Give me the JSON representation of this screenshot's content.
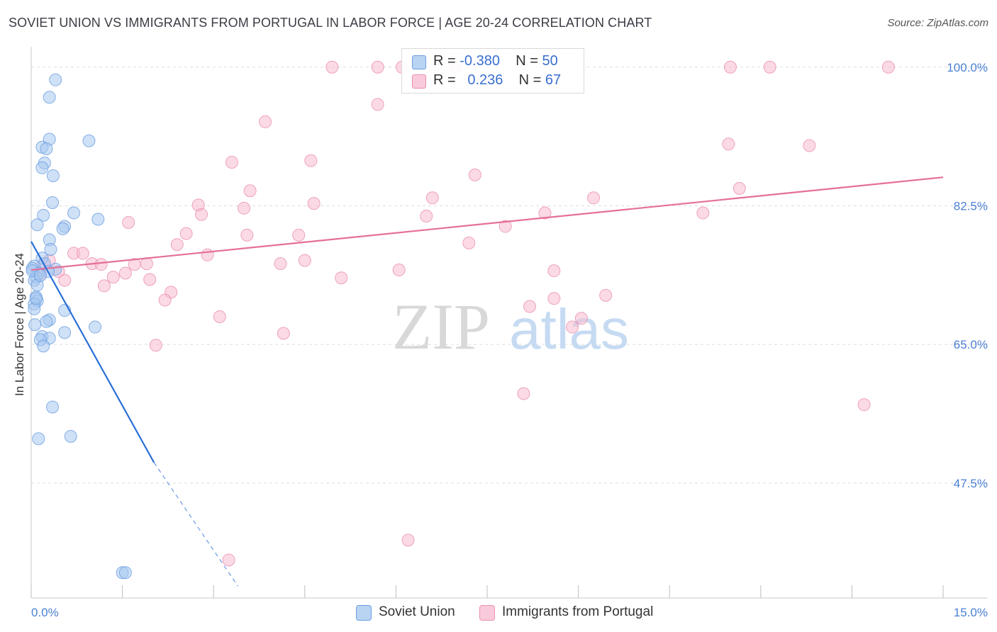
{
  "header": {
    "title": "SOVIET UNION VS IMMIGRANTS FROM PORTUGAL IN LABOR FORCE | AGE 20-24 CORRELATION CHART",
    "source": "Source: ZipAtlas.com"
  },
  "watermark": {
    "zip": "ZIP",
    "atlas": "atlas"
  },
  "legend_top": {
    "rows": [
      {
        "r_label": "R =",
        "r_value": "-0.380",
        "n_label": "N =",
        "n_value": "50"
      },
      {
        "r_label": "R =",
        "r_value": "0.236",
        "n_label": "N =",
        "n_value": "67"
      }
    ]
  },
  "legend_bottom": {
    "items": [
      {
        "label": "Soviet Union"
      },
      {
        "label": "Immigrants from Portugal"
      }
    ]
  },
  "colors": {
    "blue_fill": "#a8c8f0",
    "blue_stroke": "#6a9ee0",
    "blue_line": "#2a6fd6",
    "pink_fill": "#f7bcd0",
    "pink_stroke": "#ea8fb0",
    "pink_line": "#e56f98",
    "tick_text": "#4a7fd4",
    "grid": "#dedede"
  },
  "chart_data": {
    "type": "scatter",
    "title": "SOVIET UNION VS IMMIGRANTS FROM PORTUGAL IN LABOR FORCE | AGE 20-24 CORRELATION CHART",
    "xlabel": "",
    "ylabel": "In Labor Force | Age 20-24",
    "xlim": [
      0,
      15
    ],
    "ylim": [
      33,
      101.5
    ],
    "x_tick_labels": [
      "0.0%",
      "15.0%"
    ],
    "y_ticks": [
      47.5,
      65.0,
      82.5,
      100.0
    ],
    "y_tick_labels": [
      "47.5%",
      "65.0%",
      "82.5%",
      "100.0%"
    ],
    "grid": true,
    "legend_position": "top-center",
    "series": [
      {
        "name": "Soviet Union",
        "r": -0.38,
        "n": 50,
        "points": [
          [
            0.4,
            98.4
          ],
          [
            0.3,
            96.2
          ],
          [
            0.95,
            90.7
          ],
          [
            0.3,
            90.9
          ],
          [
            0.18,
            89.9
          ],
          [
            0.25,
            89.7
          ],
          [
            0.22,
            87.9
          ],
          [
            0.18,
            87.3
          ],
          [
            0.36,
            86.3
          ],
          [
            0.35,
            82.9
          ],
          [
            0.7,
            81.6
          ],
          [
            0.2,
            81.3
          ],
          [
            1.1,
            80.8
          ],
          [
            0.1,
            80.1
          ],
          [
            0.55,
            79.9
          ],
          [
            0.52,
            79.6
          ],
          [
            0.3,
            78.2
          ],
          [
            0.32,
            77.0
          ],
          [
            0.18,
            75.9
          ],
          [
            0.22,
            75.2
          ],
          [
            0.05,
            74.9
          ],
          [
            0.02,
            74.6
          ],
          [
            0.4,
            74.5
          ],
          [
            0.28,
            74.2
          ],
          [
            0.12,
            74.0
          ],
          [
            0.08,
            73.5
          ],
          [
            0.05,
            73.1
          ],
          [
            0.1,
            72.5
          ],
          [
            0.08,
            71.0
          ],
          [
            0.1,
            70.5
          ],
          [
            0.05,
            70.1
          ],
          [
            0.05,
            69.5
          ],
          [
            0.55,
            69.3
          ],
          [
            0.3,
            68.1
          ],
          [
            0.25,
            67.9
          ],
          [
            0.06,
            67.5
          ],
          [
            1.05,
            67.2
          ],
          [
            0.55,
            66.5
          ],
          [
            0.18,
            66.0
          ],
          [
            0.3,
            65.8
          ],
          [
            0.15,
            65.6
          ],
          [
            0.2,
            64.8
          ],
          [
            0.35,
            57.1
          ],
          [
            0.65,
            53.4
          ],
          [
            0.12,
            53.1
          ],
          [
            1.5,
            36.2
          ],
          [
            1.55,
            36.2
          ],
          [
            0.02,
            74.3
          ],
          [
            0.15,
            73.7
          ],
          [
            0.08,
            70.8
          ]
        ],
        "trend": {
          "x": [
            0.0,
            2.02
          ],
          "y": [
            78.0,
            50.1
          ]
        },
        "trend_dashed": {
          "x": [
            2.02,
            3.4
          ],
          "y": [
            50.1,
            34.5
          ]
        }
      },
      {
        "name": "Immigrants from Portugal",
        "r": 0.236,
        "n": 67,
        "points": [
          [
            4.95,
            100.0
          ],
          [
            5.7,
            100.0
          ],
          [
            6.1,
            100.0
          ],
          [
            6.98,
            100.0
          ],
          [
            11.5,
            100.0
          ],
          [
            12.15,
            100.0
          ],
          [
            14.1,
            100.0
          ],
          [
            5.7,
            95.3
          ],
          [
            3.85,
            93.1
          ],
          [
            11.47,
            90.3
          ],
          [
            12.8,
            90.1
          ],
          [
            3.3,
            88.0
          ],
          [
            4.6,
            88.2
          ],
          [
            7.3,
            86.4
          ],
          [
            11.65,
            84.7
          ],
          [
            3.6,
            84.4
          ],
          [
            9.25,
            83.5
          ],
          [
            2.75,
            82.6
          ],
          [
            4.65,
            82.8
          ],
          [
            6.6,
            83.5
          ],
          [
            2.8,
            81.4
          ],
          [
            3.5,
            82.2
          ],
          [
            11.05,
            81.6
          ],
          [
            6.5,
            81.2
          ],
          [
            8.45,
            81.6
          ],
          [
            1.6,
            80.4
          ],
          [
            7.8,
            79.9
          ],
          [
            2.55,
            79.0
          ],
          [
            3.55,
            78.8
          ],
          [
            4.4,
            78.8
          ],
          [
            2.4,
            77.6
          ],
          [
            7.2,
            77.8
          ],
          [
            0.7,
            76.5
          ],
          [
            0.85,
            76.5
          ],
          [
            2.9,
            76.3
          ],
          [
            4.5,
            75.6
          ],
          [
            0.2,
            75.1
          ],
          [
            1.0,
            75.2
          ],
          [
            1.15,
            75.1
          ],
          [
            1.7,
            75.1
          ],
          [
            1.9,
            75.2
          ],
          [
            4.1,
            75.2
          ],
          [
            0.45,
            74.2
          ],
          [
            6.05,
            74.4
          ],
          [
            8.6,
            74.3
          ],
          [
            1.55,
            74.0
          ],
          [
            1.35,
            73.5
          ],
          [
            0.55,
            73.1
          ],
          [
            1.95,
            73.2
          ],
          [
            5.1,
            73.4
          ],
          [
            1.2,
            72.4
          ],
          [
            2.3,
            71.6
          ],
          [
            9.45,
            71.2
          ],
          [
            8.6,
            70.8
          ],
          [
            2.2,
            70.6
          ],
          [
            8.2,
            69.8
          ],
          [
            3.1,
            68.5
          ],
          [
            9.05,
            68.3
          ],
          [
            8.9,
            67.2
          ],
          [
            4.15,
            66.4
          ],
          [
            2.05,
            64.9
          ],
          [
            8.1,
            58.8
          ],
          [
            13.7,
            57.4
          ],
          [
            6.2,
            40.3
          ],
          [
            3.25,
            37.8
          ],
          [
            0.15,
            73.9
          ],
          [
            0.3,
            75.6
          ]
        ],
        "trend": {
          "x": [
            0.0,
            15.0
          ],
          "y": [
            74.4,
            86.1
          ]
        }
      }
    ]
  }
}
